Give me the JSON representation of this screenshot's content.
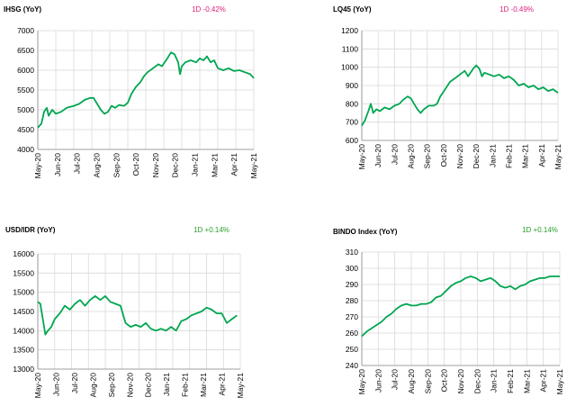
{
  "colors": {
    "line": "#00a651",
    "negative": "#e0207a",
    "positive": "#2aa02a",
    "grid": "#d9d9d9",
    "axis": "#000000"
  },
  "chart_data": [
    {
      "type": "line",
      "title": "IHSG (YoY)",
      "change": "1D -0.42%",
      "change_sign": "negative",
      "x_ticks": [
        "May-20",
        "Jun-20",
        "Jul-20",
        "Aug-20",
        "Sep-20",
        "Oct-20",
        "Nov-20",
        "Dec-20",
        "Jan-21",
        "Feb-21",
        "Mar-21",
        "Apr-21",
        "May-21"
      ],
      "x_tick_labels": [
        "May-20",
        "Jun-20",
        "Jul-20",
        "Aug-20",
        "Sep-20",
        "Oct-20",
        "Nov-20",
        "Dec-20",
        "Jan-21",
        "Mar-21",
        "Apr-21",
        "May-21"
      ],
      "y_ticks": [
        "7000",
        "6500",
        "6000",
        "5500",
        "5000",
        "4500",
        "4000"
      ],
      "ylim": [
        4000,
        7000
      ],
      "grid": true,
      "series": [
        {
          "values": [
            [
              0,
              4550
            ],
            [
              0.2,
              4650
            ],
            [
              0.35,
              4950
            ],
            [
              0.5,
              5050
            ],
            [
              0.6,
              4850
            ],
            [
              0.8,
              5000
            ],
            [
              1,
              4900
            ],
            [
              1.3,
              4950
            ],
            [
              1.6,
              5050
            ],
            [
              2,
              5100
            ],
            [
              2.3,
              5150
            ],
            [
              2.6,
              5250
            ],
            [
              2.9,
              5300
            ],
            [
              3.1,
              5300
            ],
            [
              3.3,
              5150
            ],
            [
              3.5,
              5000
            ],
            [
              3.7,
              4900
            ],
            [
              3.9,
              4950
            ],
            [
              4.1,
              5100
            ],
            [
              4.3,
              5050
            ],
            [
              4.5,
              5120
            ],
            [
              4.8,
              5100
            ],
            [
              5,
              5180
            ],
            [
              5.2,
              5400
            ],
            [
              5.45,
              5580
            ],
            [
              5.7,
              5700
            ],
            [
              5.9,
              5850
            ],
            [
              6.1,
              5950
            ],
            [
              6.4,
              6050
            ],
            [
              6.7,
              6150
            ],
            [
              6.9,
              6100
            ],
            [
              7.2,
              6300
            ],
            [
              7.4,
              6450
            ],
            [
              7.6,
              6400
            ],
            [
              7.8,
              6200
            ],
            [
              7.9,
              5900
            ],
            [
              8,
              6100
            ],
            [
              8.2,
              6200
            ],
            [
              8.5,
              6250
            ],
            [
              8.8,
              6200
            ],
            [
              9,
              6300
            ],
            [
              9.2,
              6250
            ],
            [
              9.4,
              6350
            ],
            [
              9.6,
              6200
            ],
            [
              9.8,
              6250
            ],
            [
              10,
              6050
            ],
            [
              10.3,
              6000
            ],
            [
              10.6,
              6050
            ],
            [
              10.9,
              5980
            ],
            [
              11.2,
              6000
            ],
            [
              11.5,
              5950
            ],
            [
              11.8,
              5900
            ],
            [
              12,
              5800
            ]
          ]
        }
      ]
    },
    {
      "type": "line",
      "title": "LQ45 (YoY)",
      "change": "1D -0.49%",
      "change_sign": "negative",
      "x_ticks": [
        "May-20",
        "Jun-20",
        "Jul-20",
        "Aug-20",
        "Sep-20",
        "Oct-20",
        "Nov-20",
        "Dec-20",
        "Jan-21",
        "Feb-21",
        "Mar-21",
        "Apr-21",
        "May-21"
      ],
      "x_tick_labels": [
        "May-20",
        "Jun-20",
        "Jul-20",
        "Aug-20",
        "Sep-20",
        "Oct-20",
        "Nov-20",
        "Dec-20",
        "Jan-21",
        "Feb-21",
        "Mar-21",
        "Apr-21",
        "May-21"
      ],
      "y_ticks": [
        "1200",
        "1100",
        "1000",
        "900",
        "800",
        "700",
        "600"
      ],
      "ylim": [
        600,
        1200
      ],
      "grid": true,
      "series": [
        {
          "values": [
            [
              0,
              680
            ],
            [
              0.2,
              710
            ],
            [
              0.4,
              760
            ],
            [
              0.55,
              800
            ],
            [
              0.7,
              750
            ],
            [
              0.9,
              770
            ],
            [
              1.1,
              760
            ],
            [
              1.4,
              780
            ],
            [
              1.7,
              770
            ],
            [
              2,
              790
            ],
            [
              2.3,
              800
            ],
            [
              2.5,
              820
            ],
            [
              2.8,
              840
            ],
            [
              3,
              830
            ],
            [
              3.2,
              800
            ],
            [
              3.4,
              770
            ],
            [
              3.6,
              750
            ],
            [
              3.8,
              770
            ],
            [
              4.1,
              790
            ],
            [
              4.4,
              790
            ],
            [
              4.6,
              800
            ],
            [
              4.8,
              840
            ],
            [
              5.1,
              880
            ],
            [
              5.4,
              920
            ],
            [
              5.7,
              940
            ],
            [
              6,
              960
            ],
            [
              6.3,
              980
            ],
            [
              6.5,
              950
            ],
            [
              6.8,
              990
            ],
            [
              7,
              1010
            ],
            [
              7.2,
              990
            ],
            [
              7.35,
              950
            ],
            [
              7.5,
              970
            ],
            [
              7.8,
              960
            ],
            [
              8.1,
              950
            ],
            [
              8.4,
              960
            ],
            [
              8.7,
              940
            ],
            [
              9,
              950
            ],
            [
              9.3,
              930
            ],
            [
              9.6,
              900
            ],
            [
              9.9,
              910
            ],
            [
              10.2,
              890
            ],
            [
              10.5,
              900
            ],
            [
              10.8,
              880
            ],
            [
              11.1,
              890
            ],
            [
              11.4,
              870
            ],
            [
              11.7,
              880
            ],
            [
              12,
              860
            ]
          ]
        }
      ]
    },
    {
      "type": "line",
      "title": "USD/IDR  (YoY)",
      "change": "1D +0.14%",
      "change_sign": "positive",
      "x_ticks": [
        "May-20",
        "Jun-20",
        "Jul-20",
        "Aug-20",
        "Sep-20",
        "Oct-20",
        "Nov-20",
        "Dec-20",
        "Jan-21",
        "Feb-21",
        "Mar-21",
        "Apr-21",
        "May-21"
      ],
      "x_tick_labels": [
        "May-20",
        "Jun-20",
        "Jul-20",
        "Aug-20",
        "Sep-20",
        "Nov-20",
        "Dec-20",
        "Jan-21",
        "Feb-21",
        "Mar-21",
        "Apr-21",
        "May-21"
      ],
      "y_ticks": [
        "16000",
        "15500",
        "15000",
        "14500",
        "14000",
        "13500",
        "13000"
      ],
      "ylim": [
        13000,
        16000
      ],
      "grid": true,
      "series": [
        {
          "values": [
            [
              0,
              14750
            ],
            [
              0.15,
              14700
            ],
            [
              0.3,
              14300
            ],
            [
              0.45,
              13900
            ],
            [
              0.6,
              14000
            ],
            [
              0.8,
              14100
            ],
            [
              1,
              14300
            ],
            [
              1.3,
              14450
            ],
            [
              1.6,
              14650
            ],
            [
              1.9,
              14550
            ],
            [
              2.2,
              14700
            ],
            [
              2.5,
              14800
            ],
            [
              2.8,
              14650
            ],
            [
              3.1,
              14800
            ],
            [
              3.4,
              14900
            ],
            [
              3.7,
              14800
            ],
            [
              4,
              14900
            ],
            [
              4.3,
              14750
            ],
            [
              4.6,
              14700
            ],
            [
              4.9,
              14650
            ],
            [
              5.2,
              14200
            ],
            [
              5.5,
              14100
            ],
            [
              5.8,
              14150
            ],
            [
              6.1,
              14100
            ],
            [
              6.4,
              14200
            ],
            [
              6.7,
              14050
            ],
            [
              7,
              14000
            ],
            [
              7.3,
              14050
            ],
            [
              7.6,
              14000
            ],
            [
              7.9,
              14100
            ],
            [
              8.2,
              14000
            ],
            [
              8.5,
              14250
            ],
            [
              8.8,
              14300
            ],
            [
              9.1,
              14400
            ],
            [
              9.4,
              14450
            ],
            [
              9.7,
              14500
            ],
            [
              10,
              14600
            ],
            [
              10.3,
              14550
            ],
            [
              10.6,
              14450
            ],
            [
              10.9,
              14450
            ],
            [
              11.2,
              14200
            ],
            [
              11.5,
              14300
            ],
            [
              11.8,
              14400
            ]
          ]
        }
      ]
    },
    {
      "type": "line",
      "title": "BINDO Index (YoY)",
      "change": "1D +0.14%",
      "change_sign": "positive",
      "x_ticks": [
        "May-20",
        "Jun-20",
        "Jul-20",
        "Aug-20",
        "Sep-20",
        "Oct-20",
        "Nov-20",
        "Dec-20",
        "Jan-21",
        "Feb-21",
        "Mar-21",
        "Apr-21",
        "May-21"
      ],
      "x_tick_labels": [
        "May-20",
        "Jun-20",
        "Jul-20",
        "Aug-20",
        "Sep-20",
        "Oct-20",
        "Nov-20",
        "Dec-20",
        "Jan-21",
        "Feb-21",
        "Mar-21",
        "Apr-21",
        "May-21"
      ],
      "y_ticks": [
        "310",
        "300",
        "290",
        "280",
        "270",
        "260",
        "250",
        "240"
      ],
      "ylim": [
        240,
        310
      ],
      "grid": true,
      "series": [
        {
          "values": [
            [
              0,
              258
            ],
            [
              0.3,
              261
            ],
            [
              0.6,
              263
            ],
            [
              0.9,
              265
            ],
            [
              1.2,
              267
            ],
            [
              1.5,
              270
            ],
            [
              1.8,
              272
            ],
            [
              2.1,
              275
            ],
            [
              2.4,
              277
            ],
            [
              2.7,
              278
            ],
            [
              3,
              277
            ],
            [
              3.3,
              277
            ],
            [
              3.6,
              278
            ],
            [
              3.9,
              278
            ],
            [
              4.2,
              279
            ],
            [
              4.5,
              282
            ],
            [
              4.8,
              283
            ],
            [
              5.1,
              286
            ],
            [
              5.4,
              289
            ],
            [
              5.7,
              291
            ],
            [
              6,
              292
            ],
            [
              6.3,
              294
            ],
            [
              6.6,
              295
            ],
            [
              6.9,
              294
            ],
            [
              7.2,
              292
            ],
            [
              7.5,
              293
            ],
            [
              7.8,
              294
            ],
            [
              8.1,
              292
            ],
            [
              8.4,
              289
            ],
            [
              8.7,
              288
            ],
            [
              9,
              289
            ],
            [
              9.3,
              287
            ],
            [
              9.6,
              289
            ],
            [
              9.9,
              290
            ],
            [
              10.2,
              292
            ],
            [
              10.5,
              293
            ],
            [
              10.8,
              294
            ],
            [
              11.1,
              294
            ],
            [
              11.4,
              295
            ],
            [
              11.7,
              295
            ],
            [
              12,
              295
            ]
          ]
        }
      ]
    }
  ]
}
